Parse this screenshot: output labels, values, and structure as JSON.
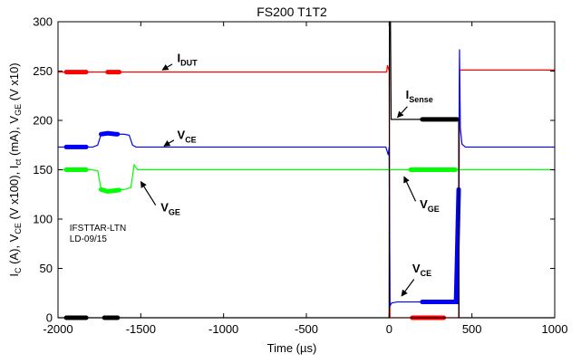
{
  "chart_data": {
    "type": "line",
    "title": "FS200 T1T2",
    "xlabel": "Time (µs)",
    "ylabel_parts": [
      {
        "t": "I",
        "s": ""
      },
      {
        "t": "C",
        "s": "sub"
      },
      {
        "t": " (A), V",
        "s": ""
      },
      {
        "t": "CE",
        "s": "sub"
      },
      {
        "t": " (V x100), I",
        "s": ""
      },
      {
        "t": "ct",
        "s": "sub"
      },
      {
        "t": " (mA), V",
        "s": ""
      },
      {
        "t": "GE",
        "s": "sub"
      },
      {
        "t": " (V x10)",
        "s": ""
      }
    ],
    "xlim": [
      -2000,
      1000
    ],
    "ylim": [
      0,
      300
    ],
    "x_ticks": [
      -2000,
      -1500,
      -1000,
      -500,
      0,
      500,
      1000
    ],
    "y_ticks": [
      0,
      50,
      100,
      150,
      200,
      250,
      300
    ],
    "grid": false,
    "series": [
      {
        "name": "I_DUT",
        "color": "#ff0000",
        "points": [
          [
            -2000,
            249
          ],
          [
            -1900,
            249
          ],
          [
            -1800,
            249
          ],
          [
            -1700,
            249
          ],
          [
            -1600,
            249
          ],
          [
            -1500,
            249
          ],
          [
            -1000,
            249
          ],
          [
            -500,
            249
          ],
          [
            -50,
            249
          ],
          [
            -15,
            249
          ],
          [
            -10,
            256
          ],
          [
            0,
            250
          ],
          [
            5,
            0
          ],
          [
            100,
            0
          ],
          [
            200,
            0
          ],
          [
            300,
            0
          ],
          [
            400,
            0
          ],
          [
            420,
            0
          ],
          [
            425,
            251
          ],
          [
            500,
            251
          ],
          [
            600,
            251
          ],
          [
            700,
            251
          ],
          [
            800,
            251
          ],
          [
            900,
            251
          ],
          [
            1000,
            251
          ]
        ],
        "thick_ranges": [
          [
            -1950,
            -1830
          ],
          [
            -1700,
            -1630
          ],
          [
            140,
            330
          ]
        ]
      },
      {
        "name": "V_CE",
        "color": "#0000ff",
        "points": [
          [
            -2000,
            173
          ],
          [
            -1900,
            173
          ],
          [
            -1790,
            173
          ],
          [
            -1760,
            175
          ],
          [
            -1740,
            186
          ],
          [
            -1700,
            187
          ],
          [
            -1650,
            186
          ],
          [
            -1600,
            186
          ],
          [
            -1570,
            185
          ],
          [
            -1550,
            175
          ],
          [
            -1530,
            173
          ],
          [
            -1500,
            173
          ],
          [
            -1000,
            173
          ],
          [
            -500,
            173
          ],
          [
            -20,
            173
          ],
          [
            -5,
            165
          ],
          [
            0,
            173
          ],
          [
            5,
            12
          ],
          [
            15,
            15
          ],
          [
            50,
            16
          ],
          [
            100,
            16
          ],
          [
            200,
            16
          ],
          [
            300,
            16
          ],
          [
            400,
            16
          ],
          [
            415,
            16
          ],
          [
            420,
            130
          ],
          [
            425,
            272
          ],
          [
            430,
            192
          ],
          [
            440,
            176
          ],
          [
            460,
            173
          ],
          [
            500,
            173
          ],
          [
            600,
            173
          ],
          [
            700,
            173
          ],
          [
            800,
            173
          ],
          [
            900,
            173
          ],
          [
            1000,
            173
          ]
        ],
        "thick_ranges": [
          [
            -1950,
            -1830
          ],
          [
            -1740,
            -1640
          ],
          [
            200,
            420
          ]
        ]
      },
      {
        "name": "V_GE",
        "color": "#00ff00",
        "points": [
          [
            -2000,
            150
          ],
          [
            -1900,
            150
          ],
          [
            -1800,
            150
          ],
          [
            -1760,
            149
          ],
          [
            -1740,
            130
          ],
          [
            -1700,
            128
          ],
          [
            -1650,
            129
          ],
          [
            -1600,
            130
          ],
          [
            -1560,
            132
          ],
          [
            -1540,
            155
          ],
          [
            -1520,
            150
          ],
          [
            -1500,
            150
          ],
          [
            -1000,
            150
          ],
          [
            -500,
            150
          ],
          [
            -10,
            150
          ],
          [
            0,
            150
          ],
          [
            100,
            150
          ],
          [
            200,
            150
          ],
          [
            300,
            150
          ],
          [
            400,
            150
          ],
          [
            500,
            150
          ],
          [
            600,
            150
          ],
          [
            700,
            150
          ],
          [
            800,
            150
          ],
          [
            900,
            150
          ],
          [
            1000,
            150
          ]
        ],
        "thick_ranges": [
          [
            -1950,
            -1830
          ],
          [
            -1740,
            -1630
          ],
          [
            130,
            400
          ]
        ]
      },
      {
        "name": "I_Sense",
        "color": "#000000",
        "points": [
          [
            -2000,
            0
          ],
          [
            -1900,
            0
          ],
          [
            -1800,
            0
          ],
          [
            -1700,
            0
          ],
          [
            -1600,
            0
          ],
          [
            -1500,
            0
          ],
          [
            -1000,
            0
          ],
          [
            -500,
            0
          ],
          [
            -10,
            0
          ],
          [
            0,
            0
          ],
          [
            2,
            300
          ],
          [
            8,
            300
          ],
          [
            12,
            201
          ],
          [
            50,
            201
          ],
          [
            100,
            201
          ],
          [
            200,
            201
          ],
          [
            300,
            201
          ],
          [
            400,
            201
          ],
          [
            420,
            201
          ],
          [
            422,
            0
          ],
          [
            500,
            0
          ],
          [
            600,
            0
          ],
          [
            700,
            0
          ],
          [
            800,
            0
          ],
          [
            900,
            0
          ],
          [
            1000,
            0
          ]
        ],
        "thick_ranges": [
          [
            -1950,
            -1830
          ],
          [
            -1720,
            -1640
          ],
          [
            200,
            410
          ]
        ]
      }
    ],
    "annotations": [
      {
        "main": "I",
        "sub": "DUT",
        "text_at": [
          -1280,
          259
        ],
        "arrow_from": [
          -1310,
          257
        ],
        "arrow_to": [
          -1370,
          251
        ]
      },
      {
        "main": "V",
        "sub": "CE",
        "text_at": [
          -1280,
          181
        ],
        "arrow_from": [
          -1300,
          180
        ],
        "arrow_to": [
          -1360,
          174
        ]
      },
      {
        "main": "V",
        "sub": "GE",
        "text_at": [
          -1380,
          108
        ],
        "arrow_from": [
          -1410,
          114
        ],
        "arrow_to": [
          -1500,
          138
        ]
      },
      {
        "main": "I",
        "sub": "Sense",
        "text_at": [
          100,
          222
        ],
        "arrow_from": [
          110,
          214
        ],
        "arrow_to": [
          50,
          203
        ]
      },
      {
        "main": "V",
        "sub": "GE",
        "text_at": [
          185,
          111
        ],
        "arrow_from": [
          160,
          118
        ],
        "arrow_to": [
          90,
          143
        ]
      },
      {
        "main": "V",
        "sub": "CE",
        "text_at": [
          140,
          46
        ],
        "arrow_from": [
          150,
          39
        ],
        "arrow_to": [
          75,
          22
        ]
      }
    ],
    "credit_lines": [
      "IFSTTAR-LTN",
      "LD-09/15"
    ]
  }
}
